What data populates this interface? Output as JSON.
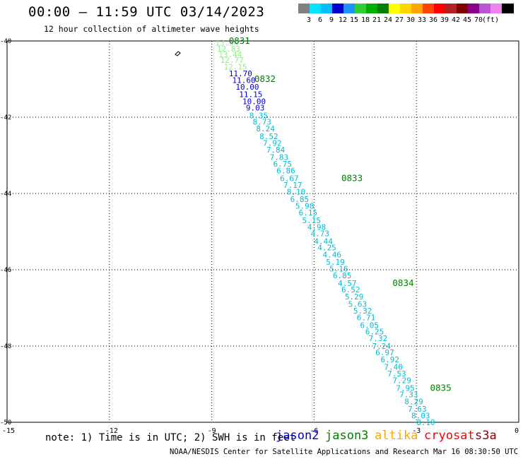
{
  "header": {
    "title": "00:00 – 11:59 UTC 03/14/2023",
    "subtitle": "12 hour collection of altimeter wave heights"
  },
  "legend": {
    "colors": [
      "#808080",
      "#00e5ff",
      "#00bfff",
      "#0000cd",
      "#1e90ff",
      "#32cd32",
      "#00b000",
      "#008000",
      "#ffff00",
      "#ffd700",
      "#ffa500",
      "#ff4500",
      "#ff0000",
      "#b22222",
      "#800000",
      "#8b008b",
      "#ba55d3",
      "#ee82ee",
      "#000000"
    ],
    "labels": [
      "3",
      "6",
      "9",
      "12",
      "15",
      "18",
      "21",
      "24",
      "27",
      "30",
      "33",
      "36",
      "39",
      "42",
      "45",
      "70",
      "(ft)"
    ]
  },
  "chart_data": {
    "type": "scatter",
    "title": "00:00 – 11:59 UTC 03/14/2023",
    "subtitle": "12 hour collection of altimeter wave heights",
    "xlim": [
      -15,
      0
    ],
    "ylim": [
      -50,
      -40
    ],
    "x_ticks": [
      "-15",
      "-12",
      "-9",
      "-6",
      "-3",
      "0"
    ],
    "y_ticks": [
      "-40",
      "-42",
      "-44",
      "-46",
      "-48",
      "-50"
    ],
    "grid": true,
    "points": [
      {
        "x": -8.9,
        "y": -40.05,
        "v": "13.34",
        "c": "#90ee90"
      },
      {
        "x": -8.85,
        "y": -40.2,
        "v": "12.83",
        "c": "#90ee90"
      },
      {
        "x": -8.8,
        "y": -40.35,
        "v": "13.44",
        "c": "#90ee90"
      },
      {
        "x": -8.75,
        "y": -40.5,
        "v": "12.77",
        "c": "#90ee90"
      },
      {
        "x": -8.65,
        "y": -40.68,
        "v": "12.15",
        "c": "#90ee90"
      },
      {
        "x": -8.5,
        "y": -40.85,
        "v": "11.70",
        "c": "#0000cd"
      },
      {
        "x": -8.4,
        "y": -41.03,
        "v": "11.60",
        "c": "#0000cd"
      },
      {
        "x": -8.3,
        "y": -41.2,
        "v": "10.00",
        "c": "#0000cd"
      },
      {
        "x": -8.2,
        "y": -41.4,
        "v": "11.15",
        "c": "#0000cd"
      },
      {
        "x": -8.1,
        "y": -41.58,
        "v": "10.00",
        "c": "#0000cd"
      },
      {
        "x": -8.0,
        "y": -41.75,
        "v": "9.03",
        "c": "#0000cd"
      },
      {
        "x": -7.9,
        "y": -41.95,
        "v": "8.35",
        "c": "#00bcd4"
      },
      {
        "x": -7.8,
        "y": -42.12,
        "v": "8.73",
        "c": "#00bcd4"
      },
      {
        "x": -7.7,
        "y": -42.3,
        "v": "8.24",
        "c": "#00bcd4"
      },
      {
        "x": -7.6,
        "y": -42.5,
        "v": "8.52",
        "c": "#00bcd4"
      },
      {
        "x": -7.5,
        "y": -42.68,
        "v": "7.92",
        "c": "#00bcd4"
      },
      {
        "x": -7.4,
        "y": -42.85,
        "v": "7.84",
        "c": "#00bcd4"
      },
      {
        "x": -7.3,
        "y": -43.05,
        "v": "7.83",
        "c": "#00bcd4"
      },
      {
        "x": -7.2,
        "y": -43.22,
        "v": "6.75",
        "c": "#00bcd4"
      },
      {
        "x": -7.1,
        "y": -43.4,
        "v": "6.86",
        "c": "#00bcd4"
      },
      {
        "x": -7.0,
        "y": -43.6,
        "v": "6.67",
        "c": "#00bcd4"
      },
      {
        "x": -6.9,
        "y": -43.78,
        "v": "7.17",
        "c": "#00bcd4"
      },
      {
        "x": -6.8,
        "y": -43.95,
        "v": "8.10",
        "c": "#00bcd4"
      },
      {
        "x": -6.7,
        "y": -44.15,
        "v": "6.85",
        "c": "#00bcd4"
      },
      {
        "x": -6.55,
        "y": -44.32,
        "v": "5.98",
        "c": "#00bcd4"
      },
      {
        "x": -6.45,
        "y": -44.5,
        "v": "6.15",
        "c": "#00bcd4"
      },
      {
        "x": -6.35,
        "y": -44.7,
        "v": "5.15",
        "c": "#00bcd4"
      },
      {
        "x": -6.2,
        "y": -44.88,
        "v": "4.98",
        "c": "#00bcd4"
      },
      {
        "x": -6.1,
        "y": -45.05,
        "v": "4.73",
        "c": "#00bcd4"
      },
      {
        "x": -6.0,
        "y": -45.25,
        "v": "4.44",
        "c": "#00bcd4"
      },
      {
        "x": -5.9,
        "y": -45.42,
        "v": "4.25",
        "c": "#00bcd4"
      },
      {
        "x": -5.75,
        "y": -45.6,
        "v": "4.46",
        "c": "#00bcd4"
      },
      {
        "x": -5.65,
        "y": -45.8,
        "v": "5.19",
        "c": "#00bcd4"
      },
      {
        "x": -5.55,
        "y": -45.97,
        "v": "5.16",
        "c": "#00bcd4"
      },
      {
        "x": -5.45,
        "y": -46.15,
        "v": "6.85",
        "c": "#00bcd4"
      },
      {
        "x": -5.3,
        "y": -46.35,
        "v": "4.57",
        "c": "#00bcd4"
      },
      {
        "x": -5.2,
        "y": -46.52,
        "v": "6.52",
        "c": "#00bcd4"
      },
      {
        "x": -5.1,
        "y": -46.7,
        "v": "5.29",
        "c": "#00bcd4"
      },
      {
        "x": -5.0,
        "y": -46.9,
        "v": "5.63",
        "c": "#00bcd4"
      },
      {
        "x": -4.85,
        "y": -47.07,
        "v": "5.32",
        "c": "#00bcd4"
      },
      {
        "x": -4.75,
        "y": -47.25,
        "v": "6.71",
        "c": "#00bcd4"
      },
      {
        "x": -4.65,
        "y": -47.45,
        "v": "6.05",
        "c": "#00bcd4"
      },
      {
        "x": -4.5,
        "y": -47.62,
        "v": "6.25",
        "c": "#00bcd4"
      },
      {
        "x": -4.4,
        "y": -47.8,
        "v": "7.32",
        "c": "#00bcd4"
      },
      {
        "x": -4.3,
        "y": -48.0,
        "v": "7.24",
        "c": "#00bcd4"
      },
      {
        "x": -4.2,
        "y": -48.17,
        "v": "6.97",
        "c": "#00bcd4"
      },
      {
        "x": -4.05,
        "y": -48.35,
        "v": "6.92",
        "c": "#00bcd4"
      },
      {
        "x": -3.95,
        "y": -48.55,
        "v": "7.40",
        "c": "#00bcd4"
      },
      {
        "x": -3.85,
        "y": -48.72,
        "v": "7.53",
        "c": "#00bcd4"
      },
      {
        "x": -3.7,
        "y": -48.9,
        "v": "7.29",
        "c": "#00bcd4"
      },
      {
        "x": -3.6,
        "y": -49.1,
        "v": "7.95",
        "c": "#00bcd4"
      },
      {
        "x": -3.5,
        "y": -49.27,
        "v": "7.33",
        "c": "#00bcd4"
      },
      {
        "x": -3.35,
        "y": -49.45,
        "v": "8.29",
        "c": "#00bcd4"
      },
      {
        "x": -3.25,
        "y": -49.65,
        "v": "7.63",
        "c": "#00bcd4"
      },
      {
        "x": -3.15,
        "y": -49.82,
        "v": "8.03",
        "c": "#00bcd4"
      },
      {
        "x": -3.0,
        "y": -50.0,
        "v": "8.10",
        "c": "#00bcd4"
      }
    ],
    "time_labels": [
      {
        "x": -8.5,
        "y": -40.0,
        "t": "0831"
      },
      {
        "x": -7.75,
        "y": -41.0,
        "t": "0832"
      },
      {
        "x": -5.2,
        "y": -43.6,
        "t": "0833"
      },
      {
        "x": -3.7,
        "y": -46.35,
        "t": "0834"
      },
      {
        "x": -2.6,
        "y": -49.1,
        "t": "0835"
      }
    ],
    "time_label_color": "#008000"
  },
  "footer": {
    "note": "note: 1) Time is in UTC; 2) SWH is in feet",
    "satellites": [
      {
        "name": "jason2",
        "color": "#0000cd"
      },
      {
        "name": "jason3",
        "color": "#008000"
      },
      {
        "name": "altika",
        "color": "#ffa500"
      },
      {
        "name": "cryosat",
        "color": "#ff0000"
      },
      {
        "name": "s3a",
        "color": "#8b0000"
      }
    ],
    "credit": "NOAA/NESDIS Center for Satellite Applications and Research    Mar 16 08:30:50 UTC 2023"
  }
}
